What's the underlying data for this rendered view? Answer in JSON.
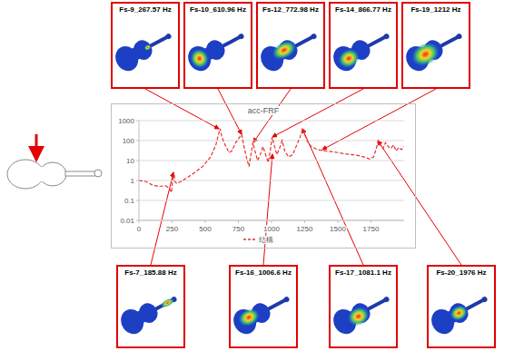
{
  "chart_data": {
    "type": "line",
    "title": "acc-FRF",
    "x": [
      0,
      50,
      100,
      150,
      200,
      230,
      245,
      255,
      262,
      270,
      285,
      320,
      400,
      480,
      540,
      580,
      600,
      612,
      625,
      650,
      680,
      700,
      730,
      760,
      775,
      790,
      810,
      830,
      845,
      860,
      875,
      895,
      915,
      935,
      955,
      975,
      990,
      1005,
      1020,
      1040,
      1060,
      1080,
      1100,
      1130,
      1160,
      1190,
      1215,
      1235,
      1250,
      1275,
      1300,
      1350,
      1400,
      1450,
      1500,
      1550,
      1600,
      1650,
      1700,
      1740,
      1770,
      1790,
      1805,
      1820,
      1840,
      1860,
      1880,
      1900,
      1920,
      1940,
      1960,
      1980,
      2000
    ],
    "series": [
      {
        "name": "结構",
        "color": "#e8312f",
        "line_style": "dashed",
        "values": [
          1,
          0.9,
          0.6,
          0.5,
          0.55,
          0.4,
          0.25,
          1.2,
          2.5,
          0.9,
          0.7,
          0.9,
          2,
          5,
          15,
          60,
          200,
          400,
          150,
          60,
          25,
          30,
          80,
          150,
          200,
          60,
          15,
          5,
          20,
          80,
          30,
          10,
          20,
          50,
          20,
          8,
          30,
          150,
          60,
          20,
          40,
          100,
          30,
          15,
          20,
          60,
          150,
          400,
          200,
          80,
          50,
          35,
          30,
          28,
          25,
          22,
          20,
          18,
          15,
          12,
          15,
          40,
          100,
          60,
          40,
          80,
          50,
          40,
          60,
          30,
          45,
          35,
          50
        ]
      }
    ],
    "xlim": [
      0,
      2000
    ],
    "xticks": [
      0,
      250,
      500,
      750,
      1000,
      1250,
      1500,
      1750
    ],
    "ylim": [
      0.01,
      1000
    ],
    "yticks": [
      0.01,
      0.1,
      1,
      10,
      100,
      1000
    ],
    "log": "y",
    "grid": true,
    "legend": "bottom",
    "annotations": [
      "Fs-9_267.57 Hz",
      "Fs-10_610.96 Hz",
      "Fs-12_772.98 Hz",
      "Fs-14_866.77 Hz",
      "Fs-19_1212 Hz",
      "Fs-7_185.88 Hz",
      "Fs-16_1006.6 Hz",
      "Fs-17_1081.1 Hz",
      "Fs-20_1976 Hz"
    ]
  }
}
